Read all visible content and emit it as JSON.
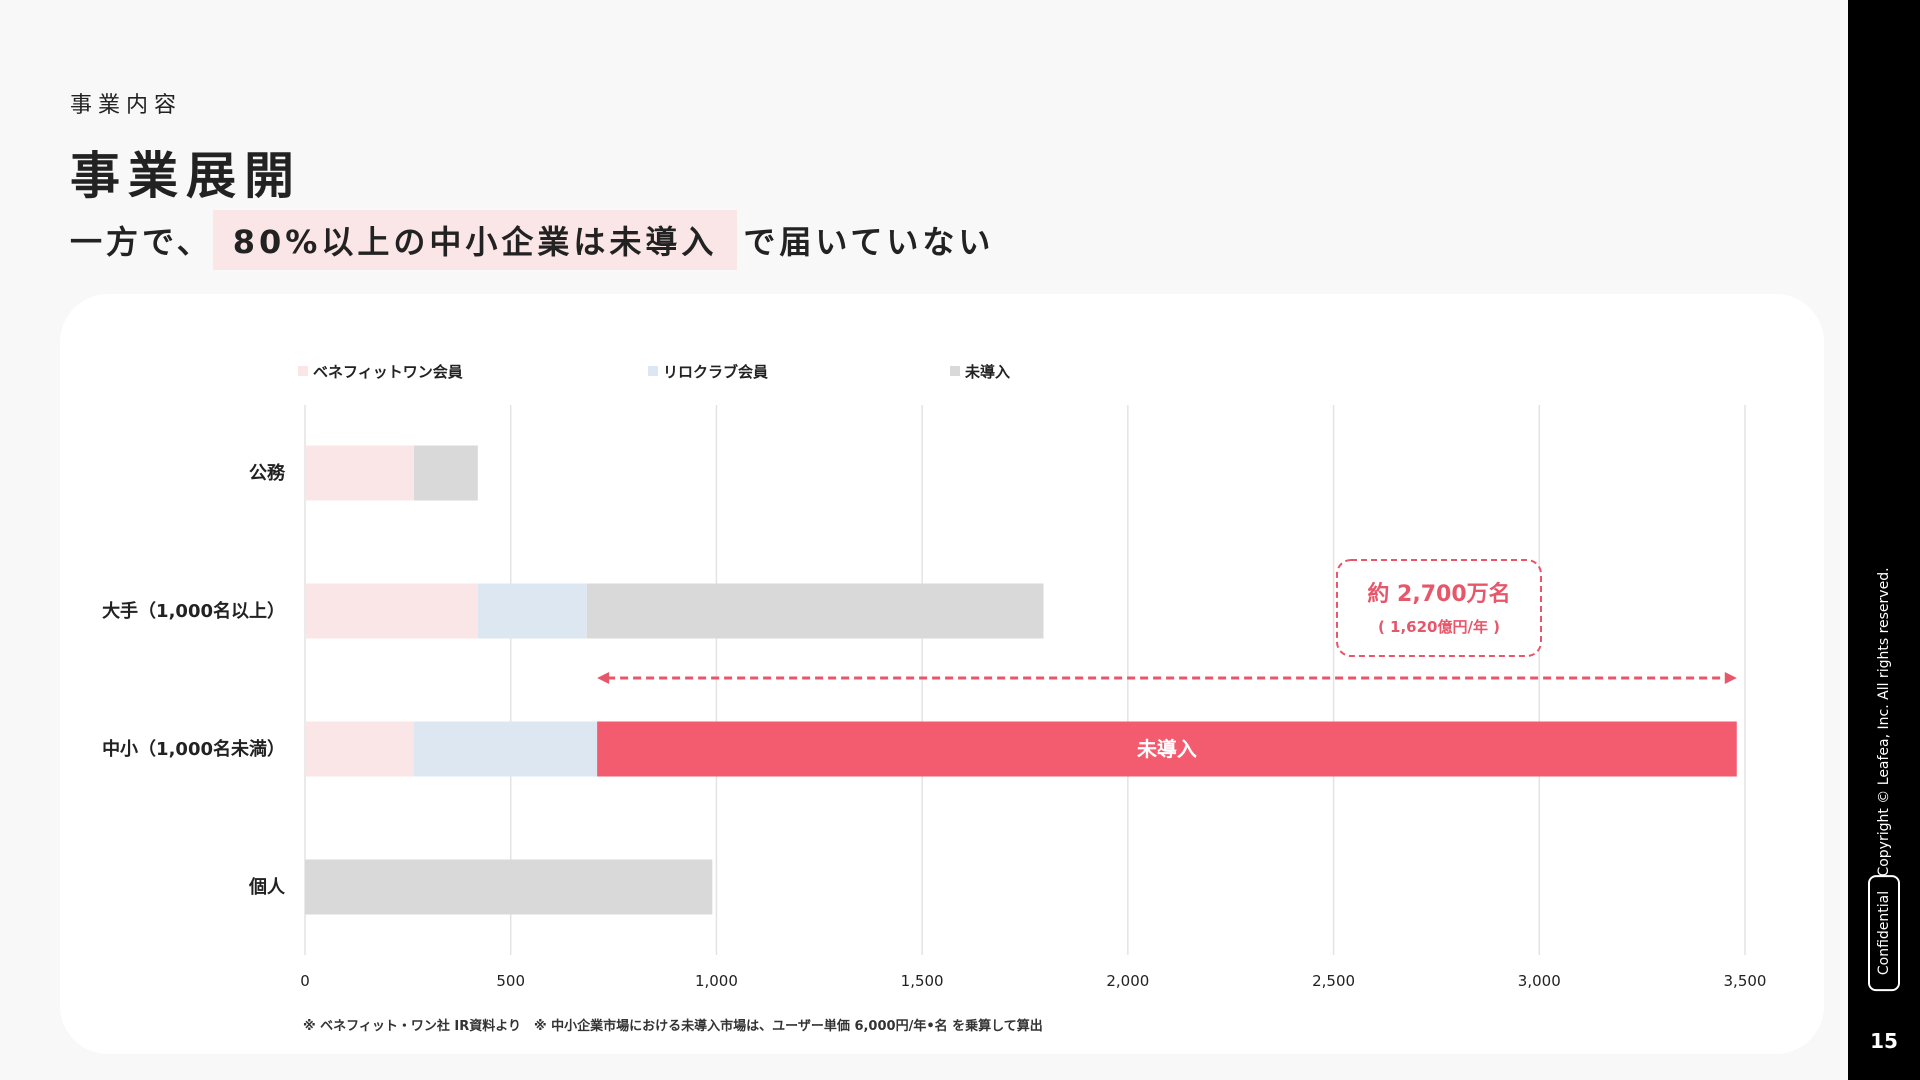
{
  "header": {
    "eyebrow": "事業内容",
    "title": "事業展開",
    "subtitle_pre": "一方で、",
    "subtitle_highlight": "80%以上の中小企業は未導入",
    "subtitle_post": "で届いていない"
  },
  "sidebar": {
    "copyright": "Copyright © Leafea, Inc. All rights reserved.",
    "confidential": "Confidential",
    "page_number": "15"
  },
  "colors": {
    "benefit_one": "#fbe6e7",
    "relo_club": "#dce7f2",
    "not_adopted": "#d9d9d9",
    "accent": "#f25c6e"
  },
  "chart_data": {
    "type": "bar",
    "orientation": "horizontal",
    "stacked": true,
    "categories": [
      "公務",
      "大手（1,000名以上）",
      "中小（1,000名未満）",
      "個人"
    ],
    "series": [
      {
        "name": "ベネフィットワン会員",
        "values": [
          265,
          420,
          265,
          0
        ],
        "color": "#fbe6e7"
      },
      {
        "name": "リロクラブ会員",
        "values": [
          0,
          265,
          445,
          0
        ],
        "color": "#dce7f2"
      },
      {
        "name": "未導入",
        "values": [
          155,
          1110,
          2770,
          990
        ],
        "color": "#d9d9d9"
      }
    ],
    "highlight": {
      "category_index": 2,
      "series_index": 2,
      "color": "#f25c6e",
      "label": "未導入"
    },
    "annotation": {
      "main": "約 2,700万名",
      "sub": "( 1,620億円/年 )",
      "arrow_from": 710,
      "arrow_to": 3480
    },
    "x_ticks": [
      "0",
      "500",
      "1,000",
      "1,500",
      "2,000",
      "2,500",
      "3,000",
      "3,500"
    ],
    "xlim": [
      0,
      3500
    ],
    "grid": true,
    "legend_position": "top",
    "footnote": "※ ベネフィット・ワン社 IR資料より　※ 中小企業市場における未導入市場は、ユーザー単価 6,000円/年•名 を乗算して算出"
  }
}
